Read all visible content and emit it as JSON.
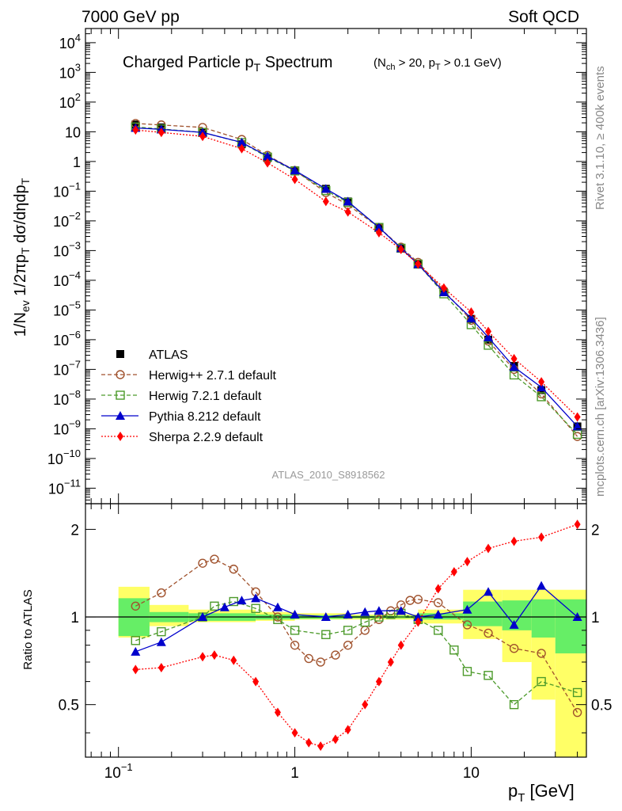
{
  "header": {
    "left": "7000 GeV pp",
    "right": "Soft QCD",
    "side_top": "Rivet 3.1.10, ≥ 400k events",
    "side_bottom": "mcplots.cern.ch [arXiv:1306.3436]",
    "analysis_id": "ATLAS_2010_S8918562"
  },
  "chart_data": [
    {
      "type": "line",
      "panel": "main",
      "title": "Charged Particle p_T Spectrum",
      "subtitle": "(N_ch > 20, p_T > 0.1 GeV)",
      "ylabel": "1/N_ev 1/2πp_T dσ/dηdp_T",
      "xlabel": "p_T [GeV]",
      "xscale": "log",
      "yscale": "log",
      "xlim": [
        0.065,
        45
      ],
      "ylim": [
        3e-12,
        30000.0
      ],
      "y_tick_labels": [
        "10^{-11}",
        "10^{-10}",
        "10^{-9}",
        "10^{-8}",
        "10^{-7}",
        "10^{-6}",
        "10^{-5}",
        "10^{-4}",
        "10^{-3}",
        "10^{-2}",
        "10^{-1}",
        "1",
        "10",
        "10^{2}",
        "10^{3}",
        "10^{4}"
      ],
      "legend_position": "bottom-left",
      "series": [
        {
          "name": "ATLAS",
          "color": "#000000",
          "marker": "square-filled",
          "line": "none",
          "points": [
            [
              0.125,
              17.5
            ],
            [
              0.175,
              14
            ],
            [
              0.3,
              9.5
            ],
            [
              0.5,
              3.8
            ],
            [
              0.7,
              1.3
            ],
            [
              1.0,
              0.5
            ],
            [
              1.5,
              0.12
            ],
            [
              2.0,
              0.045
            ],
            [
              3.0,
              0.006
            ],
            [
              4.0,
              0.0012
            ],
            [
              5.0,
              0.00035
            ],
            [
              7.0,
              4e-05
            ],
            [
              10.0,
              5e-06
            ],
            [
              12.5,
              1e-06
            ],
            [
              17.5,
              1.3e-07
            ],
            [
              25.0,
              2e-08
            ],
            [
              40.0,
              1.2e-09
            ]
          ]
        },
        {
          "name": "Herwig++ 2.7.1 default",
          "color": "#a0522d",
          "marker": "circle-open",
          "line": "dashed",
          "points": [
            [
              0.125,
              19
            ],
            [
              0.175,
              17
            ],
            [
              0.3,
              14
            ],
            [
              0.5,
              5.5
            ],
            [
              0.7,
              1.6
            ],
            [
              1.0,
              0.5
            ],
            [
              1.5,
              0.09
            ],
            [
              2.0,
              0.035
            ],
            [
              3.0,
              0.006
            ],
            [
              4.0,
              0.0013
            ],
            [
              5.0,
              0.0004
            ],
            [
              7.0,
              4.5e-05
            ],
            [
              10.0,
              4.5e-06
            ],
            [
              12.5,
              9e-07
            ],
            [
              17.5,
              1e-07
            ],
            [
              25.0,
              1.5e-08
            ],
            [
              40.0,
              5.5e-10
            ]
          ]
        },
        {
          "name": "Herwig 7.2.1 default",
          "color": "#4c9a2a",
          "marker": "square-open",
          "line": "dashed",
          "points": [
            [
              0.125,
              14.5
            ],
            [
              0.175,
              12.5
            ],
            [
              0.3,
              9.5
            ],
            [
              0.5,
              4.3
            ],
            [
              0.7,
              1.4
            ],
            [
              1.0,
              0.48
            ],
            [
              1.5,
              0.105
            ],
            [
              2.0,
              0.042
            ],
            [
              3.0,
              0.006
            ],
            [
              4.0,
              0.0012
            ],
            [
              5.0,
              0.00035
            ],
            [
              7.0,
              3.5e-05
            ],
            [
              10.0,
              3.2e-06
            ],
            [
              12.5,
              6.5e-07
            ],
            [
              17.5,
              6.5e-08
            ],
            [
              25.0,
              1.2e-08
            ],
            [
              40.0,
              6.5e-10
            ]
          ]
        },
        {
          "name": "Pythia 8.212 default",
          "color": "#0000cc",
          "marker": "triangle-filled",
          "line": "solid",
          "points": [
            [
              0.125,
              13.5
            ],
            [
              0.175,
              12
            ],
            [
              0.3,
              9.5
            ],
            [
              0.5,
              4.4
            ],
            [
              0.7,
              1.5
            ],
            [
              1.0,
              0.5
            ],
            [
              1.5,
              0.12
            ],
            [
              2.0,
              0.045
            ],
            [
              3.0,
              0.006
            ],
            [
              4.0,
              0.0012
            ],
            [
              5.0,
              0.00035
            ],
            [
              7.0,
              4e-05
            ],
            [
              10.0,
              5.3e-06
            ],
            [
              12.5,
              1.2e-06
            ],
            [
              17.5,
              1.2e-07
            ],
            [
              25.0,
              2.5e-08
            ],
            [
              40.0,
              1.2e-09
            ]
          ]
        },
        {
          "name": "Sherpa 2.2.9 default",
          "color": "#ff0000",
          "marker": "diamond-filled",
          "line": "dotted",
          "points": [
            [
              0.125,
              11.5
            ],
            [
              0.175,
              9.5
            ],
            [
              0.3,
              7
            ],
            [
              0.5,
              2.7
            ],
            [
              0.7,
              0.9
            ],
            [
              1.0,
              0.25
            ],
            [
              1.5,
              0.045
            ],
            [
              2.0,
              0.02
            ],
            [
              3.0,
              0.004
            ],
            [
              4.0,
              0.0011
            ],
            [
              5.0,
              0.00035
            ],
            [
              7.0,
              5.5e-05
            ],
            [
              10.0,
              8.5e-06
            ],
            [
              12.5,
              1.9e-06
            ],
            [
              17.5,
              2.3e-07
            ],
            [
              25.0,
              3.8e-08
            ],
            [
              40.0,
              2.5e-09
            ]
          ]
        }
      ]
    },
    {
      "type": "line",
      "panel": "ratio",
      "ylabel": "Ratio to ATLAS",
      "xlabel": "p_T [GeV]",
      "xscale": "log",
      "yscale": "log",
      "xlim": [
        0.065,
        45
      ],
      "ylim": [
        0.33,
        2.45
      ],
      "y_tick_labels": [
        "0.5",
        "1",
        "2"
      ],
      "x_tick_labels": [
        "10^{-1}",
        "1",
        "10"
      ],
      "reference_line": 1,
      "uncertainty_bands": {
        "stat_color": "#66ee66",
        "total_color": "#ffff66",
        "bins": [
          [
            0.1,
            0.15,
            0.86,
            1.16,
            0.85,
            1.27
          ],
          [
            0.15,
            0.25,
            0.96,
            1.04,
            0.93,
            1.1
          ],
          [
            0.25,
            0.6,
            0.97,
            1.03,
            0.96,
            1.06
          ],
          [
            0.6,
            1.0,
            0.98,
            1.02,
            0.97,
            1.04
          ],
          [
            1.0,
            2.0,
            0.985,
            1.015,
            0.98,
            1.03
          ],
          [
            2.0,
            5.0,
            0.99,
            1.01,
            0.98,
            1.02
          ],
          [
            5.0,
            9.0,
            0.98,
            1.03,
            0.95,
            1.06
          ],
          [
            9.0,
            15.0,
            0.93,
            1.13,
            0.84,
            1.24
          ],
          [
            15.0,
            22.0,
            0.9,
            1.14,
            0.7,
            1.24
          ],
          [
            22.0,
            30.0,
            0.85,
            1.15,
            0.52,
            1.24
          ],
          [
            30.0,
            45.0,
            0.75,
            1.15,
            0.33,
            1.24
          ]
        ]
      },
      "series": [
        {
          "name": "Herwig++ 2.7.1 default",
          "color": "#a0522d",
          "marker": "circle-open",
          "line": "dashed",
          "points": [
            [
              0.125,
              1.09
            ],
            [
              0.175,
              1.21
            ],
            [
              0.3,
              1.53
            ],
            [
              0.35,
              1.58
            ],
            [
              0.45,
              1.46
            ],
            [
              0.6,
              1.22
            ],
            [
              0.8,
              1.0
            ],
            [
              1.0,
              0.8
            ],
            [
              1.2,
              0.72
            ],
            [
              1.4,
              0.7
            ],
            [
              1.7,
              0.74
            ],
            [
              2.0,
              0.8
            ],
            [
              2.5,
              0.9
            ],
            [
              3.0,
              0.98
            ],
            [
              3.5,
              1.05
            ],
            [
              4.0,
              1.1
            ],
            [
              4.5,
              1.14
            ],
            [
              5.0,
              1.15
            ],
            [
              6.5,
              1.12
            ],
            [
              9.5,
              0.94
            ],
            [
              12.5,
              0.88
            ],
            [
              17.5,
              0.78
            ],
            [
              25.0,
              0.75
            ],
            [
              40.0,
              0.47
            ]
          ]
        },
        {
          "name": "Herwig 7.2.1 default",
          "color": "#4c9a2a",
          "marker": "square-open",
          "line": "dashed",
          "points": [
            [
              0.125,
              0.83
            ],
            [
              0.175,
              0.89
            ],
            [
              0.3,
              1.0
            ],
            [
              0.35,
              1.09
            ],
            [
              0.45,
              1.13
            ],
            [
              0.6,
              1.07
            ],
            [
              0.8,
              0.98
            ],
            [
              1.0,
              0.9
            ],
            [
              1.5,
              0.87
            ],
            [
              2.0,
              0.9
            ],
            [
              2.5,
              0.96
            ],
            [
              3.0,
              1.0
            ],
            [
              3.5,
              1.02
            ],
            [
              4.0,
              1.03
            ],
            [
              5.0,
              0.98
            ],
            [
              6.5,
              0.9
            ],
            [
              8.0,
              0.77
            ],
            [
              9.5,
              0.65
            ],
            [
              12.5,
              0.63
            ],
            [
              17.5,
              0.5
            ],
            [
              25.0,
              0.6
            ],
            [
              40.0,
              0.55
            ]
          ]
        },
        {
          "name": "Pythia 8.212 default",
          "color": "#0000cc",
          "marker": "triangle-filled",
          "line": "solid",
          "points": [
            [
              0.125,
              0.76
            ],
            [
              0.175,
              0.82
            ],
            [
              0.3,
              1.0
            ],
            [
              0.4,
              1.08
            ],
            [
              0.5,
              1.14
            ],
            [
              0.6,
              1.16
            ],
            [
              0.8,
              1.08
            ],
            [
              1.0,
              1.02
            ],
            [
              1.5,
              1.0
            ],
            [
              2.0,
              1.02
            ],
            [
              2.5,
              1.04
            ],
            [
              3.0,
              1.05
            ],
            [
              4.0,
              1.05
            ],
            [
              5.0,
              1.0
            ],
            [
              6.5,
              1.02
            ],
            [
              9.5,
              1.06
            ],
            [
              12.5,
              1.22
            ],
            [
              17.5,
              0.94
            ],
            [
              25.0,
              1.28
            ],
            [
              40.0,
              1.0
            ]
          ]
        },
        {
          "name": "Sherpa 2.2.9 default",
          "color": "#ff0000",
          "marker": "diamond-filled",
          "line": "dotted",
          "points": [
            [
              0.125,
              0.66
            ],
            [
              0.175,
              0.67
            ],
            [
              0.3,
              0.73
            ],
            [
              0.35,
              0.74
            ],
            [
              0.45,
              0.71
            ],
            [
              0.6,
              0.6
            ],
            [
              0.8,
              0.47
            ],
            [
              1.0,
              0.4
            ],
            [
              1.2,
              0.37
            ],
            [
              1.4,
              0.36
            ],
            [
              1.7,
              0.38
            ],
            [
              2.0,
              0.41
            ],
            [
              2.5,
              0.5
            ],
            [
              3.0,
              0.6
            ],
            [
              3.5,
              0.7
            ],
            [
              4.0,
              0.8
            ],
            [
              5.0,
              0.96
            ],
            [
              6.5,
              1.25
            ],
            [
              8.0,
              1.43
            ],
            [
              9.5,
              1.55
            ],
            [
              12.5,
              1.72
            ],
            [
              17.5,
              1.82
            ],
            [
              25.0,
              1.88
            ],
            [
              40.0,
              2.08
            ]
          ]
        }
      ]
    }
  ]
}
